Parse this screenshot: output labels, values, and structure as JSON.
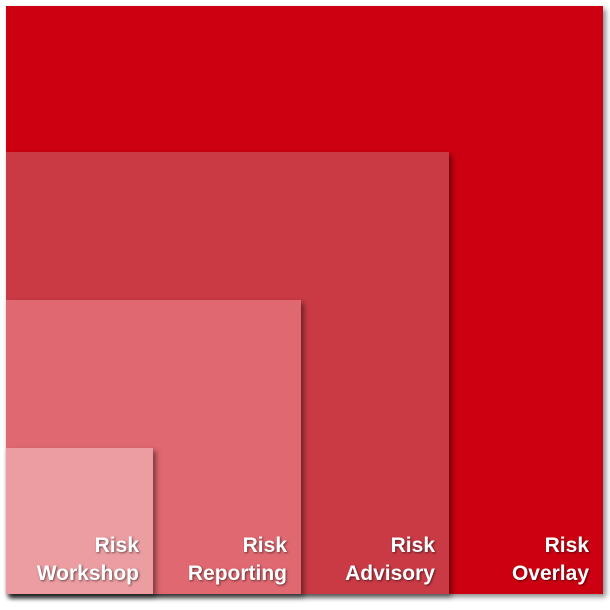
{
  "colors": {
    "overlay": "#cc0011",
    "advisory": "#c93a45",
    "reporting": "#e06870",
    "workshop": "#ec9da1"
  },
  "squares": [
    {
      "key": "overlay",
      "line1": "Risk",
      "line2": "Overlay"
    },
    {
      "key": "advisory",
      "line1": "Risk",
      "line2": "Advisory"
    },
    {
      "key": "reporting",
      "line1": "Risk",
      "line2": "Reporting"
    },
    {
      "key": "workshop",
      "line1": "Risk",
      "line2": "Workshop"
    }
  ]
}
